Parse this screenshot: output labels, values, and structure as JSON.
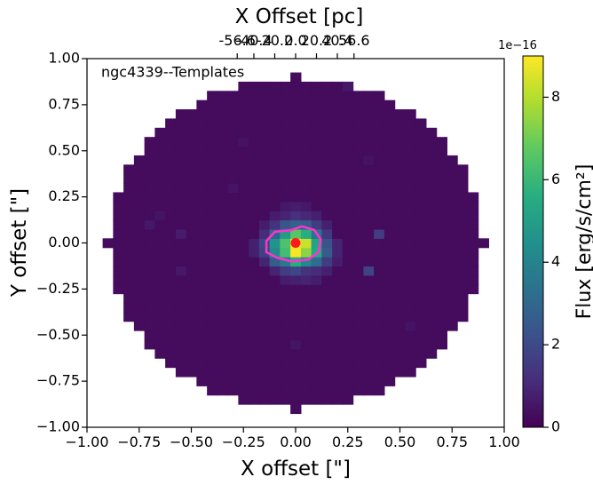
{
  "chart_data": {
    "type": "heatmap",
    "annotation": "ngc4339--Templates",
    "xlabel": "X offset [\"]",
    "ylabel": "Y offset [\"]",
    "top_xlabel": "X Offset [pc]",
    "xlim": [
      -1.0,
      1.0
    ],
    "ylim": [
      -1.0,
      1.0
    ],
    "x_ticks": [
      "−1.00",
      "−0.75",
      "−0.50",
      "−0.25",
      "0.00",
      "0.25",
      "0.50",
      "0.75",
      "1.00"
    ],
    "y_ticks": [
      "1.00",
      "0.75",
      "0.50",
      "0.25",
      "0.00",
      "−0.25",
      "−0.50",
      "−0.75",
      "−1.00"
    ],
    "top_x_ticks": [
      "-56.6",
      "-40.4",
      "-20.2",
      "0.0",
      "20.2",
      "40.4",
      "56.6"
    ],
    "top_x_tick_values_arcsec": [
      -0.28,
      -0.2,
      -0.1,
      0.0,
      0.1,
      0.2,
      0.28
    ],
    "colorbar": {
      "label": "Flux [erg/s/cm²]",
      "scale_text": "1e−16",
      "range": [
        0,
        9
      ],
      "ticks": [
        "0",
        "2",
        "4",
        "6",
        "8"
      ],
      "colormap": "viridis"
    },
    "grid_cell_arcsec": 0.05,
    "field_radius_arcsec": 0.9,
    "background_flux": 0.25,
    "bright_pixels": [
      {
        "x": 0.0,
        "y": 0.0,
        "flux": 8.7
      },
      {
        "x": 0.05,
        "y": 0.0,
        "flux": 8.3
      },
      {
        "x": -0.05,
        "y": 0.0,
        "flux": 6.4
      },
      {
        "x": 0.0,
        "y": -0.05,
        "flux": 8.9
      },
      {
        "x": 0.05,
        "y": -0.05,
        "flux": 7.4
      },
      {
        "x": -0.05,
        "y": -0.05,
        "flux": 6.2
      },
      {
        "x": 0.0,
        "y": 0.05,
        "flux": 6.6
      },
      {
        "x": 0.05,
        "y": 0.05,
        "flux": 5.6
      },
      {
        "x": -0.05,
        "y": 0.05,
        "flux": 4.9
      },
      {
        "x": -0.1,
        "y": 0.0,
        "flux": 4.6
      },
      {
        "x": 0.1,
        "y": 0.0,
        "flux": 5.2
      },
      {
        "x": -0.1,
        "y": -0.05,
        "flux": 4.2
      },
      {
        "x": 0.1,
        "y": -0.05,
        "flux": 5.4
      },
      {
        "x": 0.0,
        "y": -0.1,
        "flux": 5.6
      },
      {
        "x": 0.05,
        "y": -0.1,
        "flux": 4.2
      },
      {
        "x": -0.05,
        "y": -0.1,
        "flux": 3.6
      },
      {
        "x": 0.0,
        "y": 0.1,
        "flux": 2.8
      },
      {
        "x": 0.05,
        "y": 0.1,
        "flux": 2.6
      },
      {
        "x": -0.05,
        "y": 0.1,
        "flux": 2.4
      },
      {
        "x": -0.1,
        "y": 0.05,
        "flux": 2.9
      },
      {
        "x": 0.1,
        "y": 0.05,
        "flux": 3.4
      },
      {
        "x": -0.15,
        "y": 0.0,
        "flux": 1.9
      },
      {
        "x": 0.15,
        "y": 0.0,
        "flux": 2.3
      },
      {
        "x": -0.15,
        "y": -0.05,
        "flux": 1.7
      },
      {
        "x": 0.15,
        "y": -0.05,
        "flux": 2.6
      },
      {
        "x": 0.15,
        "y": -0.1,
        "flux": 1.6
      },
      {
        "x": 0.1,
        "y": -0.1,
        "flux": 3.2
      },
      {
        "x": -0.1,
        "y": -0.1,
        "flux": 2.6
      },
      {
        "x": 0.0,
        "y": -0.15,
        "flux": 1.9
      },
      {
        "x": 0.05,
        "y": -0.15,
        "flux": 1.3
      },
      {
        "x": -0.05,
        "y": -0.15,
        "flux": 1.6
      },
      {
        "x": 0.0,
        "y": 0.15,
        "flux": 1.2
      },
      {
        "x": 0.05,
        "y": 0.15,
        "flux": 1.0
      },
      {
        "x": -0.05,
        "y": 0.15,
        "flux": 0.9
      },
      {
        "x": 0.1,
        "y": 0.1,
        "flux": 1.6
      },
      {
        "x": -0.1,
        "y": 0.1,
        "flux": 1.3
      },
      {
        "x": -0.15,
        "y": 0.05,
        "flux": 1.1
      },
      {
        "x": 0.15,
        "y": 0.05,
        "flux": 1.5
      },
      {
        "x": -0.2,
        "y": 0.0,
        "flux": 0.8
      },
      {
        "x": 0.2,
        "y": 0.0,
        "flux": 0.9
      },
      {
        "x": -0.2,
        "y": -0.05,
        "flux": 0.8
      },
      {
        "x": 0.2,
        "y": -0.05,
        "flux": 0.9
      },
      {
        "x": 0.1,
        "y": -0.15,
        "flux": 1.1
      },
      {
        "x": -0.1,
        "y": -0.15,
        "flux": 0.9
      },
      {
        "x": 0.0,
        "y": -0.2,
        "flux": 0.8
      },
      {
        "x": -0.05,
        "y": -0.2,
        "flux": 0.7
      },
      {
        "x": 0.05,
        "y": -0.2,
        "flux": 0.9
      },
      {
        "x": 0.1,
        "y": -0.2,
        "flux": 0.7
      },
      {
        "x": 0.0,
        "y": 0.2,
        "flux": 0.7
      },
      {
        "x": -0.05,
        "y": 0.2,
        "flux": 0.6
      },
      {
        "x": 0.05,
        "y": 0.2,
        "flux": 0.6
      },
      {
        "x": 0.1,
        "y": 0.15,
        "flux": 0.8
      },
      {
        "x": -0.1,
        "y": 0.15,
        "flux": 0.7
      },
      {
        "x": 0.15,
        "y": -0.15,
        "flux": 0.8
      },
      {
        "x": -0.15,
        "y": -0.1,
        "flux": 0.9
      },
      {
        "x": -0.15,
        "y": 0.1,
        "flux": 0.7
      },
      {
        "x": 0.15,
        "y": 0.1,
        "flux": 0.8
      },
      {
        "x": 0.2,
        "y": -0.1,
        "flux": 0.7
      },
      {
        "x": 0.35,
        "y": -0.15,
        "flux": 1.8
      },
      {
        "x": 0.4,
        "y": 0.05,
        "flux": 1.6
      }
    ],
    "faint_pixels": [
      {
        "x": -0.55,
        "y": 0.05,
        "flux": 0.7
      },
      {
        "x": -0.55,
        "y": -0.15,
        "flux": 0.6
      },
      {
        "x": -0.7,
        "y": 0.1,
        "flux": 0.6
      },
      {
        "x": -0.65,
        "y": 0.15,
        "flux": 0.5
      },
      {
        "x": 0.25,
        "y": 0.85,
        "flux": 0.55
      },
      {
        "x": 0.0,
        "y": -0.55,
        "flux": 0.5
      },
      {
        "x": -0.3,
        "y": 0.3,
        "flux": 0.5
      },
      {
        "x": 0.55,
        "y": -0.45,
        "flux": 0.45
      },
      {
        "x": 0.35,
        "y": 0.45,
        "flux": 0.45
      },
      {
        "x": -0.25,
        "y": 0.55,
        "flux": 0.45
      }
    ],
    "peak_marker": {
      "x": 0.0,
      "y": 0.0,
      "color": "#ff1a1a"
    },
    "contour": {
      "color": "#ff33cc",
      "points": [
        [
          -0.14,
          0.01
        ],
        [
          -0.1,
          0.06
        ],
        [
          -0.02,
          0.07
        ],
        [
          0.03,
          0.09
        ],
        [
          0.09,
          0.07
        ],
        [
          0.12,
          0.02
        ],
        [
          0.11,
          -0.05
        ],
        [
          0.06,
          -0.09
        ],
        [
          -0.02,
          -0.1
        ],
        [
          -0.09,
          -0.08
        ],
        [
          -0.14,
          -0.05
        ]
      ]
    }
  }
}
